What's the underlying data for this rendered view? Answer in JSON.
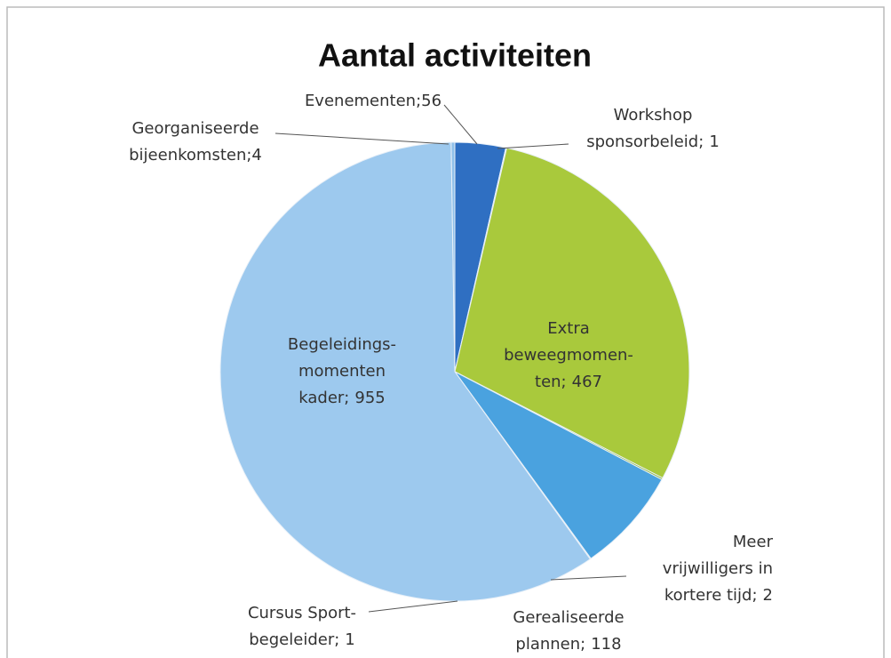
{
  "chart_data": {
    "type": "pie",
    "title": "Aantal activiteiten",
    "categories": [
      "Evenementen;\n",
      "Workshop\nsponsorbeleid;",
      "Extra\nbeweegmomen-\nten;",
      "Meer\nvrijwilligers in\nkortere tijd;",
      "Gerealiseerde\nplannen;",
      "Cursus Sport-\nbegeleider;",
      "Begeleidings-\nmomenten\nkader;",
      "Georganiseerde\nbijeenkomsten;\n"
    ],
    "values": [
      56,
      1,
      467,
      2,
      118,
      1,
      955,
      4
    ],
    "colors": [
      "#2f6fc2",
      "#1f5aa8",
      "#a9c93c",
      "#8fb536",
      "#4aa2df",
      "#7fb8e6",
      "#9dc9ee",
      "#8fc0ea"
    ]
  }
}
